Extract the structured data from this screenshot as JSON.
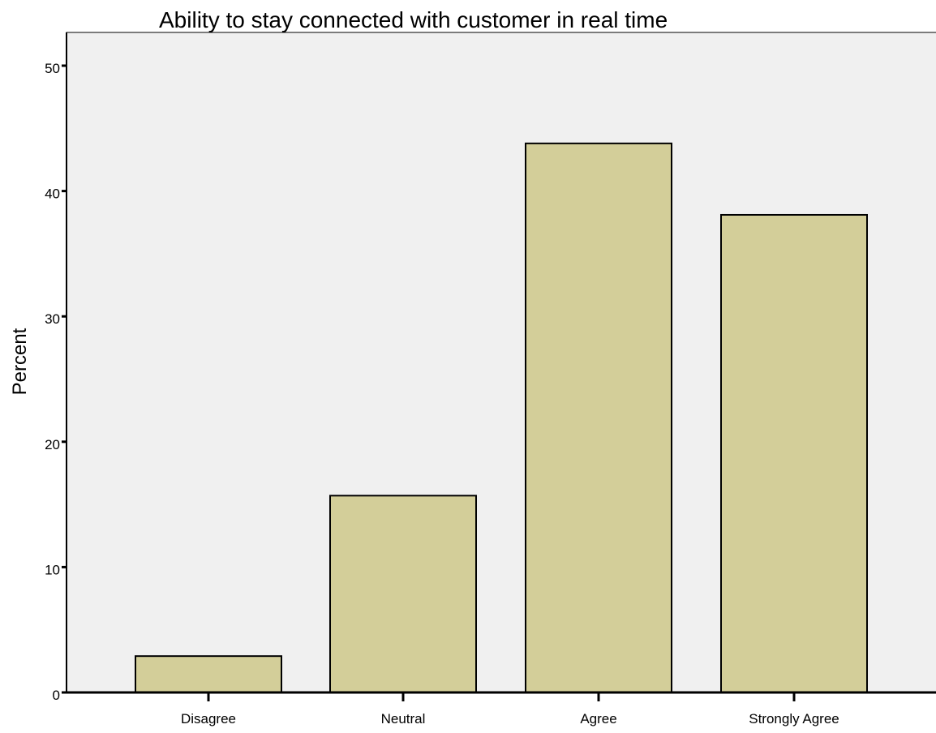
{
  "chart_data": {
    "type": "bar",
    "title": "Ability to stay connected with customer in real time",
    "xlabel": "",
    "ylabel": "Percent",
    "categories": [
      "Disagree",
      "Neutral",
      "Agree",
      "Strongly Agree"
    ],
    "values": [
      2.9,
      15.7,
      43.8,
      38.1
    ],
    "ylim": [
      0,
      50
    ],
    "yticks": [
      "0",
      "10",
      "20",
      "30",
      "40",
      "50"
    ],
    "grid": false,
    "legend": "none",
    "colors": {
      "plot_background": "#f0f0f0",
      "bar_fill": "#d3ce99",
      "bar_stroke": "#000000",
      "axis": "#000000"
    }
  }
}
